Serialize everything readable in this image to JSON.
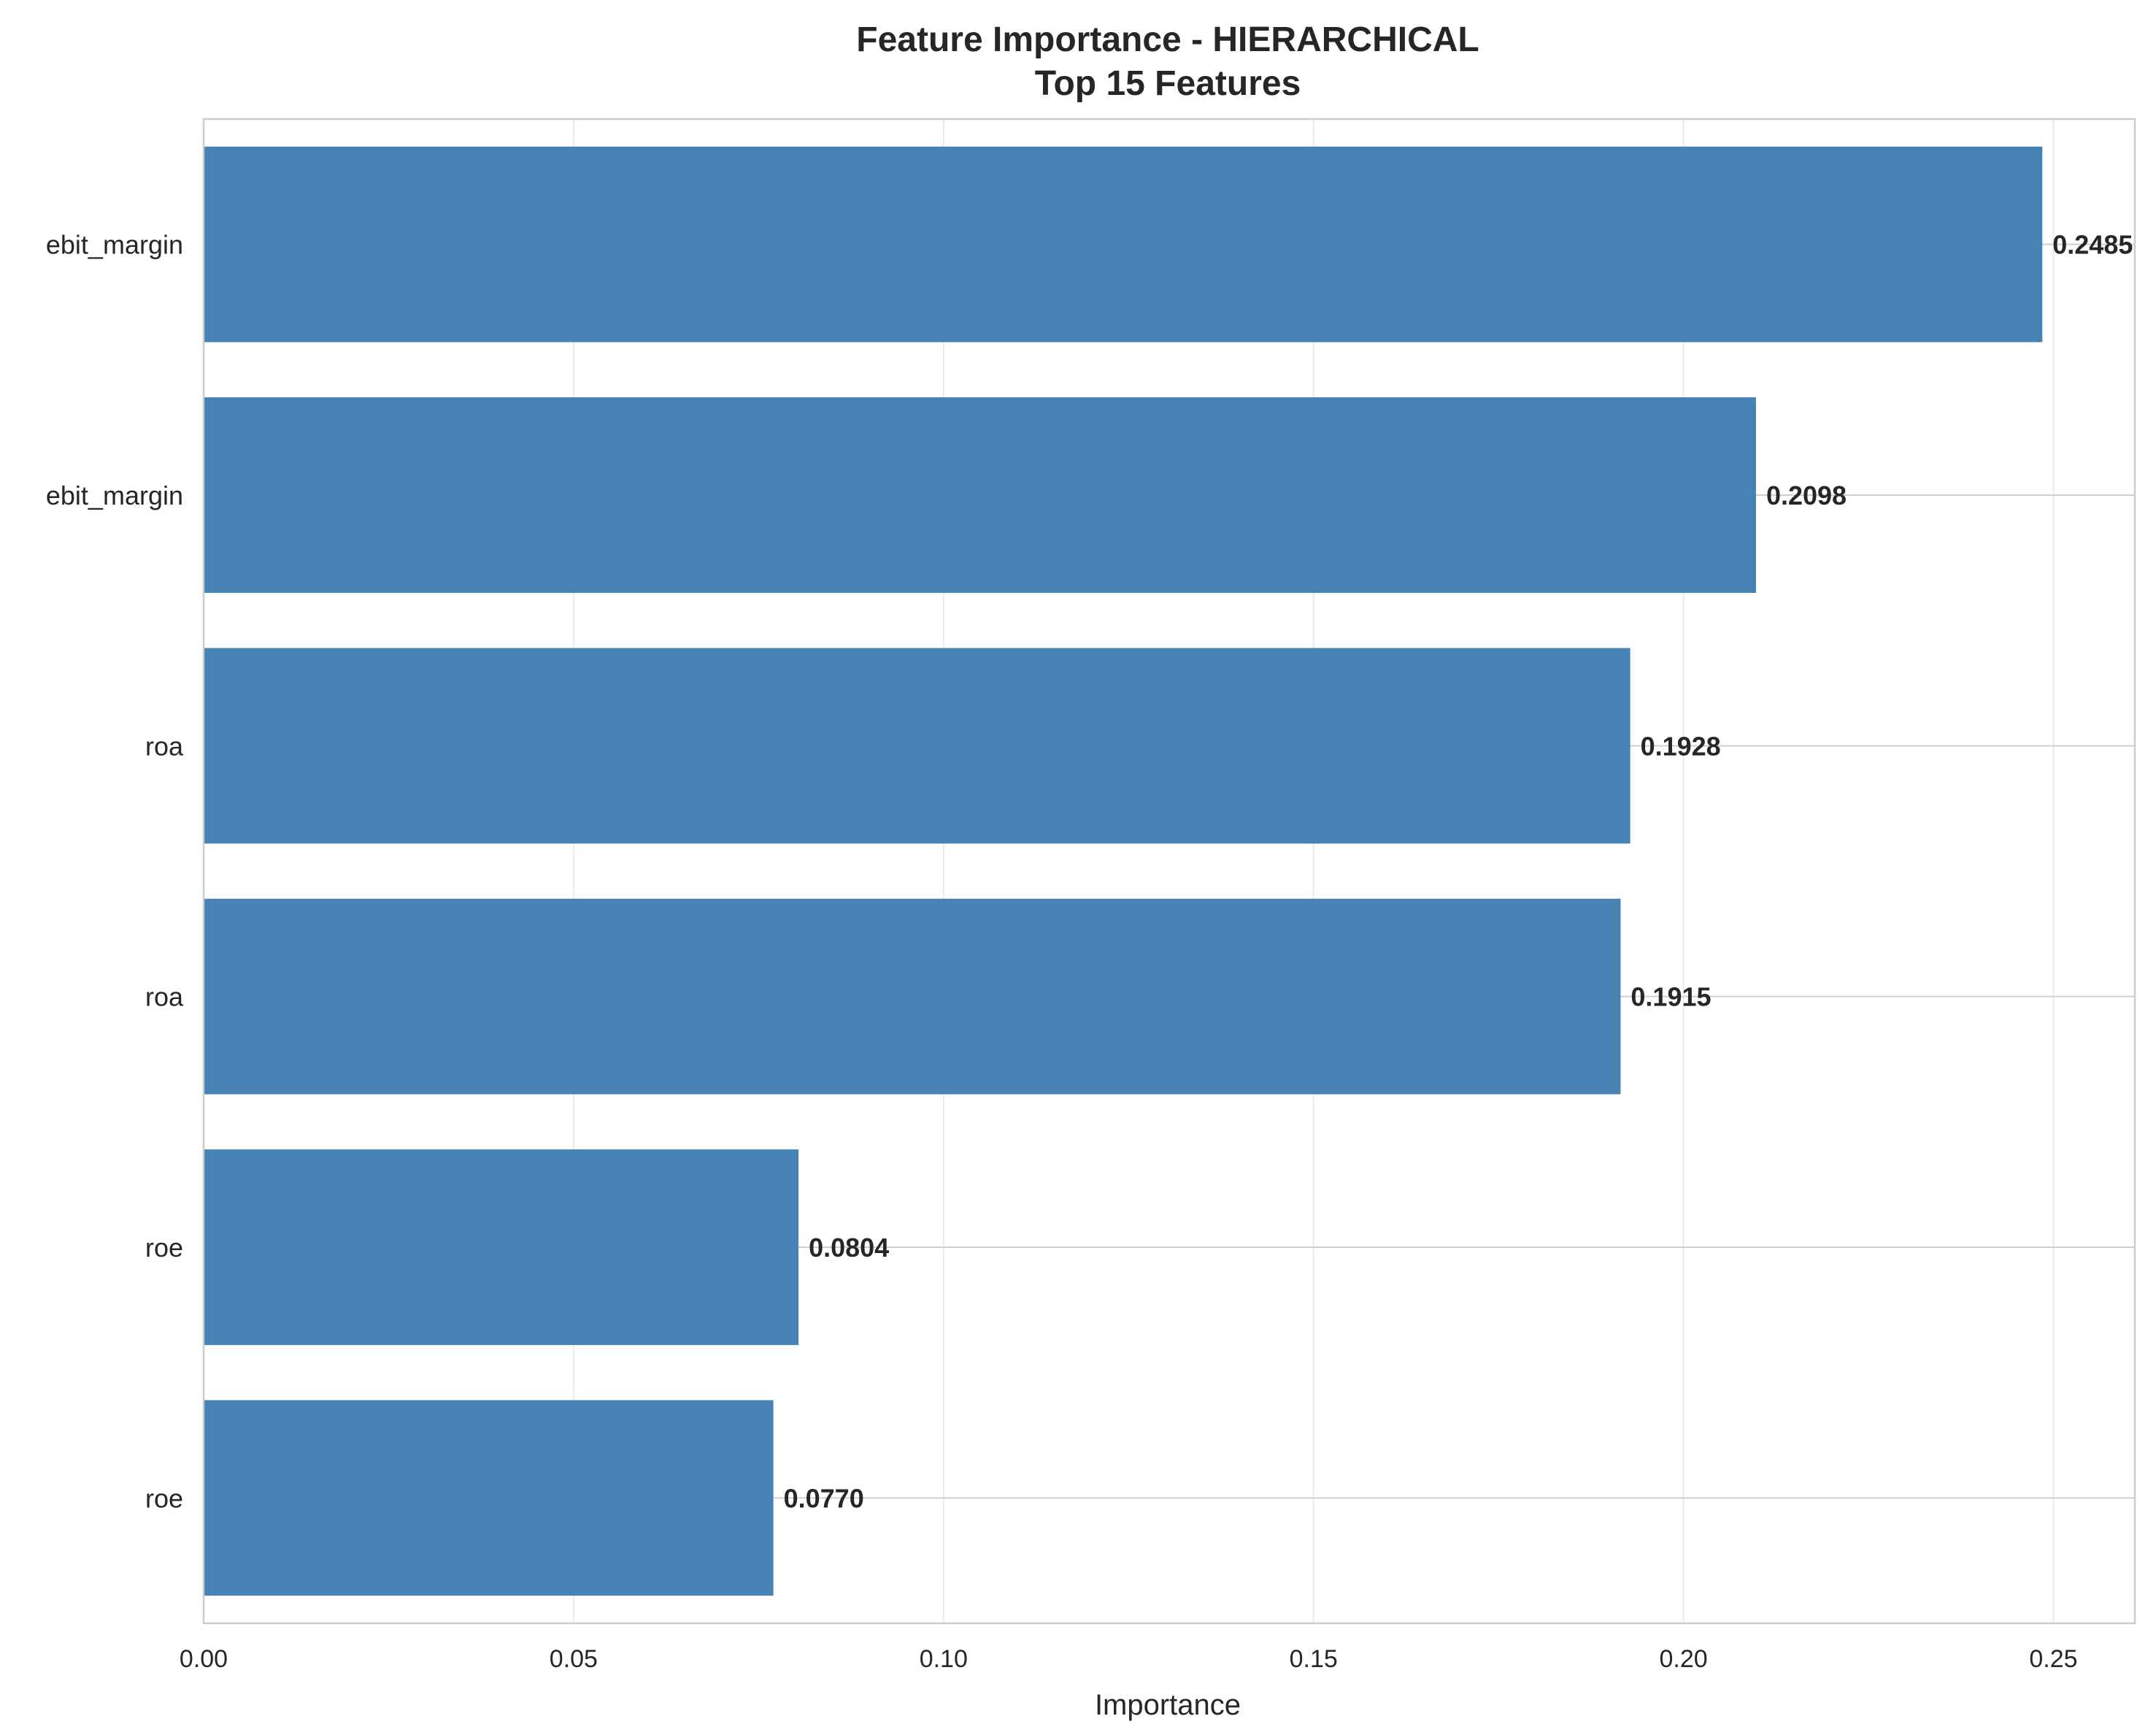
{
  "chart_data": {
    "type": "bar",
    "orientation": "horizontal",
    "title": "Feature Importance - HIERARCHICAL",
    "subtitle": "Top 15 Features",
    "xlabel": "Importance",
    "ylabel": "",
    "xlim": [
      0,
      0.261
    ],
    "xticks": [
      0.0,
      0.05,
      0.1,
      0.15,
      0.2,
      0.25
    ],
    "xtick_labels": [
      "0.00",
      "0.05",
      "0.10",
      "0.15",
      "0.20",
      "0.25"
    ],
    "grid": true,
    "legend": "none",
    "bar_color": "#4682b4",
    "categories": [
      "ebit_margin",
      "ebit_margin",
      "roa",
      "roa",
      "roe",
      "roe"
    ],
    "values": [
      0.2485,
      0.2098,
      0.1928,
      0.1915,
      0.0804,
      0.077
    ],
    "value_labels": [
      "0.2485",
      "0.2098",
      "0.1928",
      "0.1915",
      "0.0804",
      "0.0770"
    ]
  }
}
